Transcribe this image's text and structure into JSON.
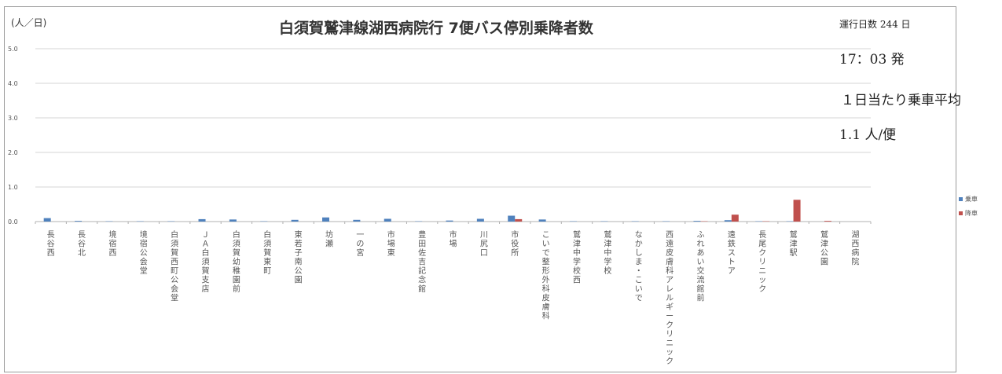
{
  "header": {
    "unit": "(人／日)",
    "title": "白須賀鷲津線湖西病院行 7便バス停別乗降者数",
    "operating_days": "運行日数 244 日",
    "departure": "17：03 発",
    "avg_label": "１日当たり乗車平均",
    "avg_value": "1.1 人/便"
  },
  "colors": {
    "boarding": "#4f81bd",
    "alighting": "#c0504d",
    "grid": "#d4d4d4"
  },
  "chart_data": {
    "type": "bar",
    "ylim": [
      0,
      5
    ],
    "yticks": [
      "0.0",
      "1.0",
      "2.0",
      "3.0",
      "4.0",
      "5.0"
    ],
    "grid": true,
    "legend_position": "right",
    "categories": [
      "長谷西",
      "長谷北",
      "境宿西",
      "境宿公会堂",
      "白須賀西町公会堂",
      "ＪＡ白須賀支店",
      "白須賀幼稚園前",
      "白須賀東町",
      "東若子南公園",
      "坊瀬",
      "一の宮",
      "市場東",
      "豊田佐吉記念館",
      "市場",
      "川尻口",
      "市役所",
      "こいで整形外科皮膚科",
      "鷲津中学校西",
      "鷲津中学校",
      "なかしま・こいで",
      "西遠皮膚科アレルギークリニック",
      "ふれあい交流館前",
      "遠鉄ストア",
      "長尾クリニック",
      "鷲津駅",
      "鷲津公園",
      "湖西病院"
    ],
    "series": [
      {
        "name": "乗車",
        "values": [
          0.1,
          0.02,
          0.01,
          0.01,
          0.01,
          0.07,
          0.06,
          0.01,
          0.05,
          0.12,
          0.05,
          0.08,
          0.01,
          0.03,
          0.08,
          0.17,
          0.06,
          0.01,
          0.01,
          0.01,
          0.01,
          0.02,
          0.04,
          0.01,
          0.01,
          0.0,
          0.0
        ]
      },
      {
        "name": "降車",
        "values": [
          0.0,
          0.0,
          0.0,
          0.0,
          0.0,
          0.0,
          0.0,
          0.0,
          0.0,
          0.0,
          0.0,
          0.0,
          0.0,
          0.0,
          0.0,
          0.07,
          0.0,
          0.0,
          0.0,
          0.0,
          0.0,
          0.01,
          0.2,
          0.01,
          0.63,
          0.02,
          0.0
        ]
      }
    ]
  }
}
